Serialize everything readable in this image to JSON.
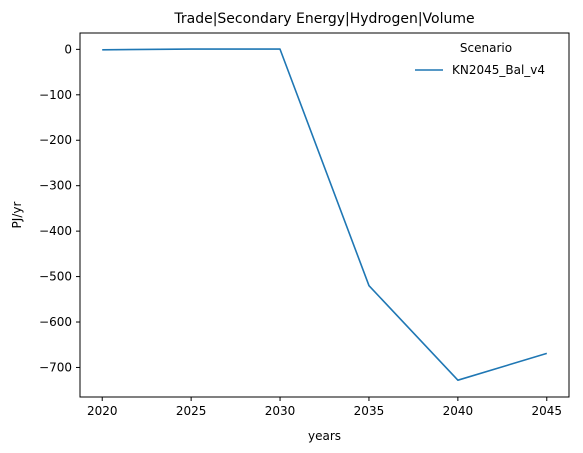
{
  "chart_data": {
    "type": "line",
    "title": "Trade|Secondary Energy|Hydrogen|Volume",
    "xlabel": "years",
    "ylabel": "PJ/yr",
    "x": [
      2020,
      2025,
      2030,
      2035,
      2040,
      2045
    ],
    "xticks": [
      "2020",
      "2025",
      "2030",
      "2035",
      "2040",
      "2045"
    ],
    "xlim": [
      2018.75,
      2046.25
    ],
    "yticks": [
      0,
      -100,
      -200,
      -300,
      -400,
      -500,
      -600,
      -700
    ],
    "ytick_labels": [
      "0",
      "−100",
      "−200",
      "−300",
      "−400",
      "−500",
      "−600",
      "−700"
    ],
    "ylim": [
      -765,
      36
    ],
    "grid": false,
    "legend": {
      "title": "Scenario",
      "placement": "top-right"
    },
    "series": [
      {
        "name": "KN2045_Bal_v4",
        "color": "#1f77b4",
        "values": [
          -1,
          0.5,
          0.5,
          -520,
          -728,
          -669
        ]
      }
    ]
  }
}
